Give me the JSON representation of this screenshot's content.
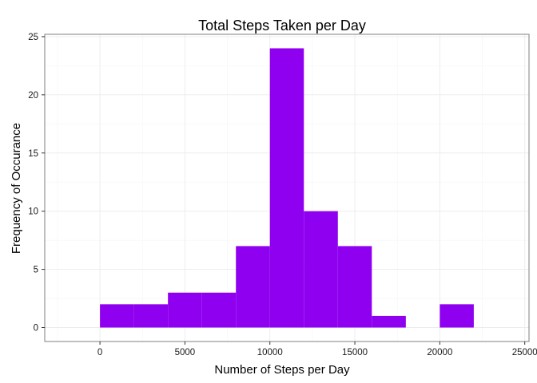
{
  "chart_data": {
    "type": "bar",
    "title": "Total Steps Taken per Day",
    "xlabel": "Number of Steps per Day",
    "ylabel": "Frequency of Occurance",
    "xlim": [
      -3250,
      25250
    ],
    "ylim": [
      -1.2,
      25.2
    ],
    "x_ticks": [
      0,
      5000,
      10000,
      15000,
      20000,
      25000
    ],
    "y_ticks": [
      0,
      5,
      10,
      15,
      20,
      25
    ],
    "grid": true,
    "bar_color": "#8f00f0",
    "bins": [
      {
        "x0": 0,
        "x1": 2000,
        "count": 2
      },
      {
        "x0": 2000,
        "x1": 4000,
        "count": 2
      },
      {
        "x0": 4000,
        "x1": 6000,
        "count": 3
      },
      {
        "x0": 6000,
        "x1": 8000,
        "count": 3
      },
      {
        "x0": 8000,
        "x1": 10000,
        "count": 7
      },
      {
        "x0": 10000,
        "x1": 12000,
        "count": 24
      },
      {
        "x0": 12000,
        "x1": 14000,
        "count": 10
      },
      {
        "x0": 14000,
        "x1": 16000,
        "count": 7
      },
      {
        "x0": 16000,
        "x1": 18000,
        "count": 1
      },
      {
        "x0": 18000,
        "x1": 20000,
        "count": 0
      },
      {
        "x0": 20000,
        "x1": 22000,
        "count": 2
      }
    ]
  }
}
